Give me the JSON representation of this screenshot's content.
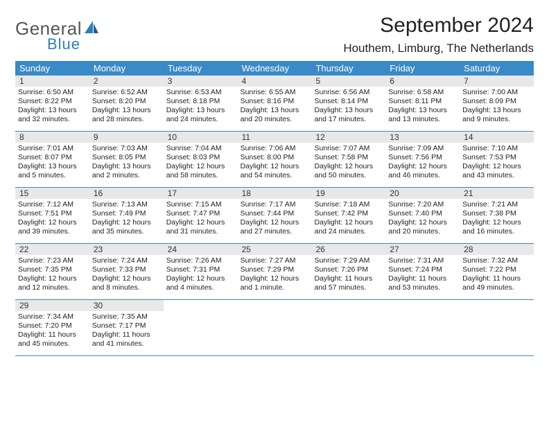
{
  "logo": {
    "general": "General",
    "blue": "Blue"
  },
  "title": "September 2024",
  "location": "Houthem, Limburg, The Netherlands",
  "colors": {
    "headerBar": "#3a8ac7",
    "dayNumBg": "#e8e8e8",
    "text": "#222222",
    "logoGray": "#555555",
    "logoBlue": "#2f7fb7"
  },
  "weekdays": [
    "Sunday",
    "Monday",
    "Tuesday",
    "Wednesday",
    "Thursday",
    "Friday",
    "Saturday"
  ],
  "days": [
    {
      "n": "1",
      "sr": "Sunrise: 6:50 AM",
      "ss": "Sunset: 8:22 PM",
      "dl": "Daylight: 13 hours and 32 minutes."
    },
    {
      "n": "2",
      "sr": "Sunrise: 6:52 AM",
      "ss": "Sunset: 8:20 PM",
      "dl": "Daylight: 13 hours and 28 minutes."
    },
    {
      "n": "3",
      "sr": "Sunrise: 6:53 AM",
      "ss": "Sunset: 8:18 PM",
      "dl": "Daylight: 13 hours and 24 minutes."
    },
    {
      "n": "4",
      "sr": "Sunrise: 6:55 AM",
      "ss": "Sunset: 8:16 PM",
      "dl": "Daylight: 13 hours and 20 minutes."
    },
    {
      "n": "5",
      "sr": "Sunrise: 6:56 AM",
      "ss": "Sunset: 8:14 PM",
      "dl": "Daylight: 13 hours and 17 minutes."
    },
    {
      "n": "6",
      "sr": "Sunrise: 6:58 AM",
      "ss": "Sunset: 8:11 PM",
      "dl": "Daylight: 13 hours and 13 minutes."
    },
    {
      "n": "7",
      "sr": "Sunrise: 7:00 AM",
      "ss": "Sunset: 8:09 PM",
      "dl": "Daylight: 13 hours and 9 minutes."
    },
    {
      "n": "8",
      "sr": "Sunrise: 7:01 AM",
      "ss": "Sunset: 8:07 PM",
      "dl": "Daylight: 13 hours and 5 minutes."
    },
    {
      "n": "9",
      "sr": "Sunrise: 7:03 AM",
      "ss": "Sunset: 8:05 PM",
      "dl": "Daylight: 13 hours and 2 minutes."
    },
    {
      "n": "10",
      "sr": "Sunrise: 7:04 AM",
      "ss": "Sunset: 8:03 PM",
      "dl": "Daylight: 12 hours and 58 minutes."
    },
    {
      "n": "11",
      "sr": "Sunrise: 7:06 AM",
      "ss": "Sunset: 8:00 PM",
      "dl": "Daylight: 12 hours and 54 minutes."
    },
    {
      "n": "12",
      "sr": "Sunrise: 7:07 AM",
      "ss": "Sunset: 7:58 PM",
      "dl": "Daylight: 12 hours and 50 minutes."
    },
    {
      "n": "13",
      "sr": "Sunrise: 7:09 AM",
      "ss": "Sunset: 7:56 PM",
      "dl": "Daylight: 12 hours and 46 minutes."
    },
    {
      "n": "14",
      "sr": "Sunrise: 7:10 AM",
      "ss": "Sunset: 7:53 PM",
      "dl": "Daylight: 12 hours and 43 minutes."
    },
    {
      "n": "15",
      "sr": "Sunrise: 7:12 AM",
      "ss": "Sunset: 7:51 PM",
      "dl": "Daylight: 12 hours and 39 minutes."
    },
    {
      "n": "16",
      "sr": "Sunrise: 7:13 AM",
      "ss": "Sunset: 7:49 PM",
      "dl": "Daylight: 12 hours and 35 minutes."
    },
    {
      "n": "17",
      "sr": "Sunrise: 7:15 AM",
      "ss": "Sunset: 7:47 PM",
      "dl": "Daylight: 12 hours and 31 minutes."
    },
    {
      "n": "18",
      "sr": "Sunrise: 7:17 AM",
      "ss": "Sunset: 7:44 PM",
      "dl": "Daylight: 12 hours and 27 minutes."
    },
    {
      "n": "19",
      "sr": "Sunrise: 7:18 AM",
      "ss": "Sunset: 7:42 PM",
      "dl": "Daylight: 12 hours and 24 minutes."
    },
    {
      "n": "20",
      "sr": "Sunrise: 7:20 AM",
      "ss": "Sunset: 7:40 PM",
      "dl": "Daylight: 12 hours and 20 minutes."
    },
    {
      "n": "21",
      "sr": "Sunrise: 7:21 AM",
      "ss": "Sunset: 7:38 PM",
      "dl": "Daylight: 12 hours and 16 minutes."
    },
    {
      "n": "22",
      "sr": "Sunrise: 7:23 AM",
      "ss": "Sunset: 7:35 PM",
      "dl": "Daylight: 12 hours and 12 minutes."
    },
    {
      "n": "23",
      "sr": "Sunrise: 7:24 AM",
      "ss": "Sunset: 7:33 PM",
      "dl": "Daylight: 12 hours and 8 minutes."
    },
    {
      "n": "24",
      "sr": "Sunrise: 7:26 AM",
      "ss": "Sunset: 7:31 PM",
      "dl": "Daylight: 12 hours and 4 minutes."
    },
    {
      "n": "25",
      "sr": "Sunrise: 7:27 AM",
      "ss": "Sunset: 7:29 PM",
      "dl": "Daylight: 12 hours and 1 minute."
    },
    {
      "n": "26",
      "sr": "Sunrise: 7:29 AM",
      "ss": "Sunset: 7:26 PM",
      "dl": "Daylight: 11 hours and 57 minutes."
    },
    {
      "n": "27",
      "sr": "Sunrise: 7:31 AM",
      "ss": "Sunset: 7:24 PM",
      "dl": "Daylight: 11 hours and 53 minutes."
    },
    {
      "n": "28",
      "sr": "Sunrise: 7:32 AM",
      "ss": "Sunset: 7:22 PM",
      "dl": "Daylight: 11 hours and 49 minutes."
    },
    {
      "n": "29",
      "sr": "Sunrise: 7:34 AM",
      "ss": "Sunset: 7:20 PM",
      "dl": "Daylight: 11 hours and 45 minutes."
    },
    {
      "n": "30",
      "sr": "Sunrise: 7:35 AM",
      "ss": "Sunset: 7:17 PM",
      "dl": "Daylight: 11 hours and 41 minutes."
    }
  ],
  "grid": {
    "startOffset": 0,
    "totalCells": 35
  }
}
